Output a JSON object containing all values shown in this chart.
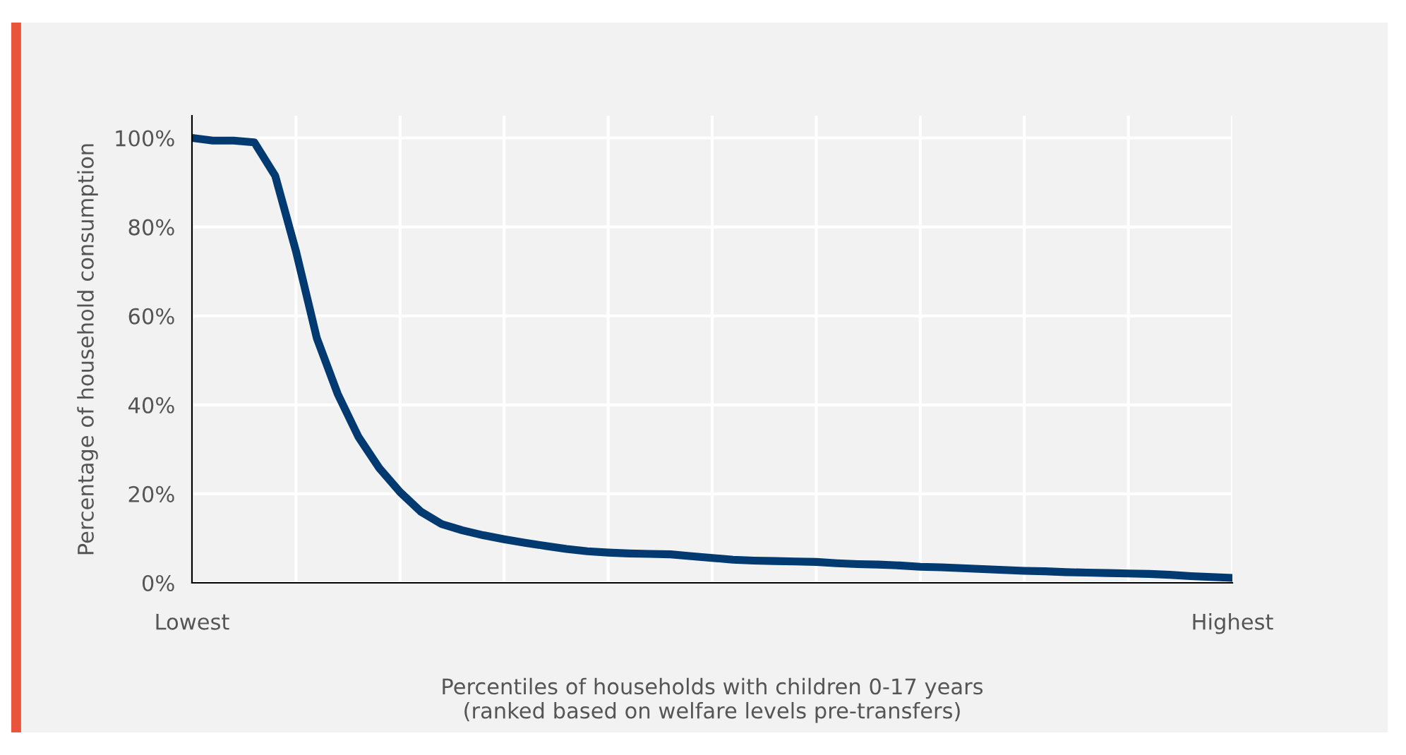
{
  "chart_data": {
    "type": "line",
    "xlabel": "Percentiles of households with children 0-17 years\n(ranked based on welfare levels pre-transfers)",
    "ylabel": "Percentage of household consumption",
    "categories": [
      "Lowest",
      null,
      null,
      null,
      null,
      null,
      null,
      null,
      null,
      null,
      null,
      null,
      null,
      null,
      null,
      null,
      null,
      null,
      null,
      null,
      null,
      null,
      null,
      null,
      null,
      null,
      null,
      null,
      null,
      null,
      null,
      null,
      null,
      null,
      null,
      null,
      null,
      null,
      null,
      null,
      null,
      null,
      null,
      null,
      null,
      null,
      null,
      null,
      null,
      null,
      "Highest"
    ],
    "series": [
      {
        "color": "#003a70",
        "values": [
          100,
          99.4,
          99.4,
          99,
          91.5,
          74.5,
          55,
          42.5,
          32.8,
          25.8,
          20.4,
          16,
          13.2,
          11.8,
          10.7,
          9.8,
          9,
          8.3,
          7.6,
          7.1,
          6.8,
          6.6,
          6.5,
          6.4,
          6,
          5.6,
          5.2,
          5,
          4.9,
          4.8,
          4.7,
          4.4,
          4.2,
          4.1,
          3.9,
          3.6,
          3.5,
          3.3,
          3.1,
          2.9,
          2.7,
          2.6,
          2.4,
          2.3,
          2.2,
          2.1,
          2,
          1.8,
          1.5,
          1.3,
          1.1
        ]
      }
    ],
    "ylim": [
      0,
      105
    ],
    "yticks": [
      {
        "value": 0,
        "label": "0%"
      },
      {
        "value": 20,
        "label": "20%"
      },
      {
        "value": 40,
        "label": "40%"
      },
      {
        "value": 60,
        "label": "60%"
      },
      {
        "value": 80,
        "label": "80%"
      },
      {
        "value": 100,
        "label": "100%"
      }
    ],
    "grid": true,
    "marker": "none",
    "line_style": "solid",
    "legend": false
  }
}
